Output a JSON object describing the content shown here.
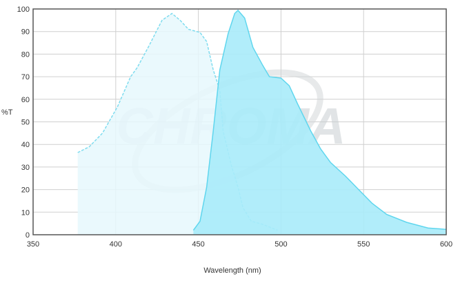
{
  "chart_data": {
    "type": "area",
    "title": "",
    "xlabel": "Wavelength (nm)",
    "ylabel": "%T",
    "xlim": [
      350,
      600
    ],
    "ylim": [
      0,
      100
    ],
    "xticks": [
      350,
      400,
      450,
      500,
      550,
      600
    ],
    "yticks": [
      0,
      10,
      20,
      30,
      40,
      50,
      60,
      70,
      80,
      90,
      100
    ],
    "grid": true,
    "watermark": "CHROMA",
    "colors": {
      "excitation_fill": "#e6f8fd",
      "excitation_line": "#7fdcef",
      "emission_fill": "#a9ebfa",
      "emission_line": "#5fd6ee",
      "grid": "#cfcfcf",
      "frame": "#555555"
    },
    "series": [
      {
        "style": "dashed",
        "x": [
          377,
          384,
          392,
          401,
          409,
          413,
          420,
          428,
          434,
          439,
          444,
          451,
          455,
          459,
          463,
          465,
          470,
          474,
          477,
          482,
          489,
          498
        ],
        "y": [
          36.4,
          39,
          45,
          56.6,
          70,
          74,
          83.5,
          95,
          98,
          95,
          91,
          89.6,
          85.6,
          73,
          64,
          46,
          30.6,
          21,
          12,
          6,
          4.6,
          2
        ]
      },
      {
        "style": "solid",
        "x": [
          447,
          451,
          455,
          459,
          463,
          468,
          472,
          474,
          478,
          483,
          489,
          493,
          500,
          505,
          510,
          518,
          524,
          530,
          539,
          547,
          555,
          564,
          576,
          589,
          600
        ],
        "y": [
          2,
          6,
          21,
          46,
          73,
          89,
          98,
          99.4,
          96,
          83,
          75,
          70,
          69.4,
          66,
          58,
          46,
          38,
          32,
          26,
          20,
          14,
          9,
          5.5,
          3,
          2.4
        ]
      }
    ]
  }
}
